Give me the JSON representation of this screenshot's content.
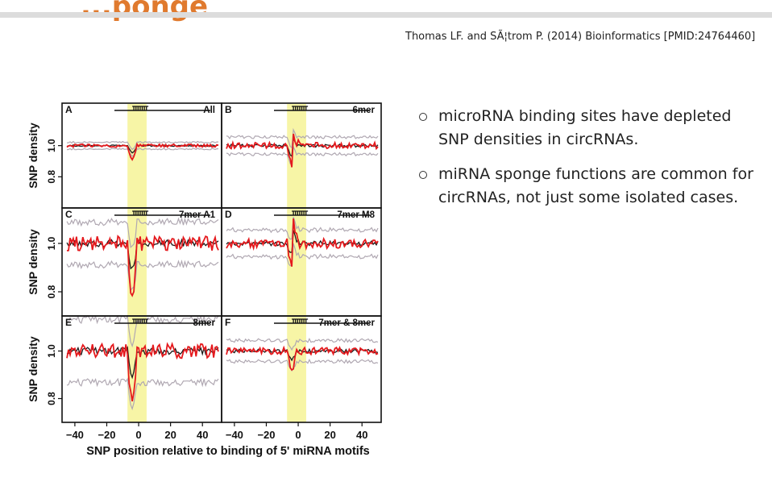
{
  "slide": {
    "title": "...ponge",
    "citation": "Thomas LF. and SÃ¦trom P. (2014) Bioinformatics [PMID:24764460]",
    "bullets": [
      {
        "text": "microRNA binding sites have depleted SNP densities in circRNAs."
      },
      {
        "text": "miRNA sponge functions are common for circRNAs, not just some  isolated cases."
      }
    ]
  },
  "colors": {
    "accent_title": "#e07a2e",
    "highlight": "#f7f5a6",
    "series_red": "#e5191d",
    "series_black": "#1a1a1a",
    "envelope_gray": "#b0a8b2"
  },
  "chart_data": {
    "type": "line",
    "xlabel": "SNP position relative to binding of 5' miRNA motifs",
    "ylabel": "SNP density",
    "x_ticks": [
      -40,
      -20,
      0,
      20,
      40
    ],
    "y_ticks": [
      0.8,
      1.0
    ],
    "xlim": [
      -45,
      50
    ],
    "highlight_x": [
      -7,
      5
    ],
    "panels": [
      {
        "letter": "A",
        "label": "All",
        "ylim": [
          0.6,
          1.2
        ],
        "y_ticks": [
          0.8,
          1.0
        ],
        "noise": 0.01,
        "peak": 0.0,
        "dip": 0.09,
        "band": 0.01
      },
      {
        "letter": "B",
        "label": "6mer",
        "ylim": [
          0.6,
          1.2
        ],
        "y_ticks": [
          0.8,
          1.0
        ],
        "noise": 0.02,
        "peak": 0.09,
        "dip": 0.12,
        "band": 0.025
      },
      {
        "letter": "C",
        "label": "7mer A1",
        "ylim": [
          0.7,
          1.1
        ],
        "y_ticks": [
          0.8,
          1.0
        ],
        "noise": 0.03,
        "peak": 0.0,
        "dip": 0.22,
        "band": 0.04
      },
      {
        "letter": "D",
        "label": "7mer M8",
        "ylim": [
          0.7,
          1.1
        ],
        "y_ticks": [
          0.8,
          1.0
        ],
        "noise": 0.02,
        "peak": 0.1,
        "dip": 0.08,
        "band": 0.025
      },
      {
        "letter": "E",
        "label": "8mer",
        "ylim": [
          0.7,
          1.1
        ],
        "y_ticks": [
          0.8,
          1.0
        ],
        "noise": 0.03,
        "peak": 0.0,
        "dip": 0.22,
        "band": 0.06
      },
      {
        "letter": "F",
        "label": "7mer & 8mer",
        "ylim": [
          0.7,
          1.1
        ],
        "y_ticks": [
          0.8,
          1.0
        ],
        "noise": 0.015,
        "peak": 0.0,
        "dip": 0.07,
        "band": 0.02
      }
    ]
  }
}
